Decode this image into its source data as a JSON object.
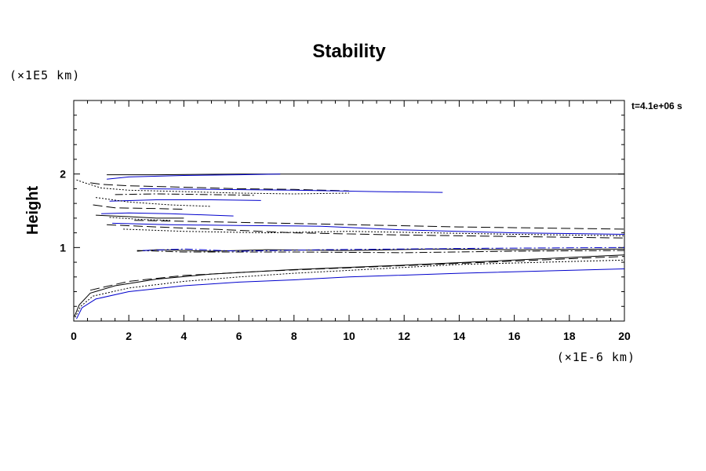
{
  "chart_data": {
    "type": "line",
    "title": "Stability",
    "ylabel": "Height",
    "xlabel": "",
    "x_unit": "(×1E-6 km)",
    "y_unit": "(×1E5 km)",
    "time_label": "t=4.1e+06 s",
    "xlim": [
      0,
      20
    ],
    "ylim": [
      0,
      3.0
    ],
    "xticks": [
      0,
      2,
      4,
      6,
      8,
      10,
      12,
      14,
      16,
      18,
      20
    ],
    "yticks": [
      1,
      2
    ],
    "grid": false,
    "colors": {
      "black": "#000000",
      "blue": "#0000cc"
    },
    "series": [
      {
        "style": "solid",
        "color": "#0000cc",
        "points": [
          [
            0.1,
            0.03
          ],
          [
            0.3,
            0.18
          ],
          [
            0.8,
            0.3
          ],
          [
            2,
            0.4
          ],
          [
            4,
            0.48
          ],
          [
            6,
            0.53
          ],
          [
            8,
            0.56
          ],
          [
            10,
            0.6
          ],
          [
            14,
            0.65
          ],
          [
            20,
            0.71
          ]
        ]
      },
      {
        "style": "dotted",
        "color": "#000000",
        "points": [
          [
            0.05,
            0.05
          ],
          [
            0.25,
            0.2
          ],
          [
            0.7,
            0.34
          ],
          [
            2,
            0.45
          ],
          [
            4,
            0.54
          ],
          [
            6,
            0.6
          ],
          [
            8,
            0.65
          ],
          [
            10,
            0.69
          ],
          [
            14,
            0.77
          ],
          [
            20,
            0.83
          ]
        ]
      },
      {
        "style": "solid",
        "color": "#000000",
        "points": [
          [
            0.02,
            0.06
          ],
          [
            0.2,
            0.22
          ],
          [
            0.6,
            0.38
          ],
          [
            1.5,
            0.48
          ],
          [
            3,
            0.57
          ],
          [
            5,
            0.64
          ],
          [
            8,
            0.7
          ],
          [
            12,
            0.76
          ],
          [
            16,
            0.83
          ],
          [
            20,
            0.9
          ]
        ]
      },
      {
        "style": "dashed",
        "color": "#000000",
        "points": [
          [
            0.6,
            0.42
          ],
          [
            2,
            0.54
          ],
          [
            4,
            0.62
          ],
          [
            7,
            0.68
          ],
          [
            11,
            0.74
          ],
          [
            15,
            0.8
          ],
          [
            20,
            0.88
          ]
        ]
      },
      {
        "style": "dashdot",
        "color": "#000000",
        "points": [
          [
            2.3,
            0.96
          ],
          [
            4,
            0.94
          ],
          [
            8,
            0.94
          ],
          [
            12,
            0.93
          ],
          [
            16,
            0.95
          ],
          [
            20,
            0.96
          ]
        ]
      },
      {
        "style": "solid",
        "color": "#000000",
        "points": [
          [
            2.3,
            0.95
          ],
          [
            3,
            0.97
          ],
          [
            5,
            0.95
          ],
          [
            7,
            0.97
          ],
          [
            10,
            0.96
          ],
          [
            13,
            0.98
          ],
          [
            16,
            0.97
          ],
          [
            20,
            0.98
          ]
        ]
      },
      {
        "style": "dashdot",
        "color": "#0000cc",
        "points": [
          [
            2.5,
            0.96
          ],
          [
            4,
            0.98
          ],
          [
            6,
            0.95
          ],
          [
            9,
            0.97
          ],
          [
            12,
            0.98
          ],
          [
            15,
            0.99
          ],
          [
            20,
            1.0
          ]
        ]
      },
      {
        "style": "dashed",
        "color": "#000000",
        "points": [
          [
            1.2,
            1.31
          ],
          [
            3,
            1.28
          ],
          [
            5,
            1.25
          ],
          [
            8,
            1.2
          ],
          [
            12,
            1.17
          ],
          [
            16,
            1.15
          ],
          [
            20,
            1.13
          ]
        ]
      },
      {
        "style": "solid",
        "color": "#0000cc",
        "points": [
          [
            1.4,
            1.33
          ],
          [
            3.5,
            1.31
          ],
          [
            6,
            1.3
          ],
          [
            9,
            1.29
          ],
          [
            12,
            1.24
          ],
          [
            16,
            1.2
          ],
          [
            20,
            1.18
          ]
        ]
      },
      {
        "style": "dotted",
        "color": "#000000",
        "points": [
          [
            1.8,
            1.25
          ],
          [
            4,
            1.22
          ],
          [
            7,
            1.2
          ],
          [
            10,
            1.22
          ],
          [
            13,
            1.2
          ],
          [
            16,
            1.18
          ],
          [
            20,
            1.16
          ]
        ]
      },
      {
        "style": "dashed",
        "color": "#000000",
        "points": [
          [
            2.2,
            1.37
          ],
          [
            5,
            1.35
          ],
          [
            9,
            1.32
          ],
          [
            14,
            1.28
          ],
          [
            20,
            1.25
          ]
        ]
      },
      {
        "style": "solid",
        "color": "#000000",
        "points": [
          [
            1.2,
            1.99
          ],
          [
            3,
            1.99
          ],
          [
            6,
            2.0
          ],
          [
            10,
            2.0
          ],
          [
            15,
            2.0
          ],
          [
            20,
            2.0
          ]
        ]
      },
      {
        "style": "solid",
        "color": "#0000cc",
        "points": [
          [
            1.2,
            1.93
          ],
          [
            2,
            1.96
          ],
          [
            4,
            1.98
          ],
          [
            6,
            1.99
          ],
          [
            7.5,
            2.0
          ]
        ]
      },
      {
        "style": "dashed",
        "color": "#000000",
        "points": [
          [
            0.6,
            1.88
          ],
          [
            1,
            1.86
          ],
          [
            2,
            1.84
          ],
          [
            4,
            1.82
          ],
          [
            6,
            1.8
          ],
          [
            8,
            1.79
          ],
          [
            10,
            1.77
          ]
        ]
      },
      {
        "style": "dotted",
        "color": "#000000",
        "points": [
          [
            0.1,
            1.92
          ],
          [
            0.4,
            1.88
          ],
          [
            1,
            1.81
          ],
          [
            2,
            1.78
          ],
          [
            4,
            1.76
          ],
          [
            6,
            1.74
          ],
          [
            8,
            1.73
          ],
          [
            10,
            1.74
          ]
        ]
      },
      {
        "style": "solid",
        "color": "#0000cc",
        "points": [
          [
            2.4,
            1.8
          ],
          [
            5,
            1.79
          ],
          [
            8,
            1.78
          ],
          [
            11,
            1.76
          ],
          [
            13.4,
            1.75
          ]
        ]
      },
      {
        "style": "dashdot",
        "color": "#000000",
        "points": [
          [
            1.5,
            1.72
          ],
          [
            3,
            1.73
          ],
          [
            5,
            1.72
          ],
          [
            6.6,
            1.71
          ]
        ]
      },
      {
        "style": "solid",
        "color": "#0000cc",
        "points": [
          [
            1.3,
            1.63
          ],
          [
            3,
            1.65
          ],
          [
            5,
            1.65
          ],
          [
            6.8,
            1.64
          ]
        ]
      },
      {
        "style": "dotted",
        "color": "#000000",
        "points": [
          [
            0.8,
            1.68
          ],
          [
            2,
            1.62
          ],
          [
            3.5,
            1.58
          ],
          [
            5,
            1.56
          ]
        ]
      },
      {
        "style": "dashed",
        "color": "#000000",
        "points": [
          [
            0.7,
            1.58
          ],
          [
            1.5,
            1.54
          ],
          [
            3,
            1.53
          ],
          [
            4,
            1.52
          ]
        ]
      },
      {
        "style": "solid",
        "color": "#0000cc",
        "points": [
          [
            1.0,
            1.46
          ],
          [
            2,
            1.47
          ],
          [
            3.5,
            1.46
          ],
          [
            5.8,
            1.43
          ]
        ]
      },
      {
        "style": "solid",
        "color": "#000000",
        "points": [
          [
            0.8,
            1.44
          ],
          [
            2,
            1.42
          ],
          [
            3,
            1.4
          ],
          [
            4,
            1.4
          ]
        ]
      },
      {
        "style": "dotted",
        "color": "#000000",
        "points": [
          [
            1.3,
            1.41
          ],
          [
            2.5,
            1.38
          ],
          [
            3.5,
            1.37
          ]
        ]
      }
    ]
  }
}
